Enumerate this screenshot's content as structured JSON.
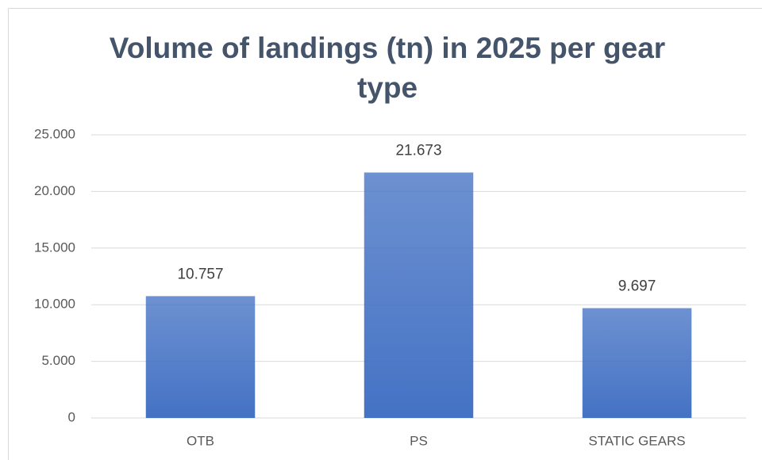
{
  "chart_data": {
    "type": "bar",
    "title": "Volume of landings (tn) in 2025 per gear type",
    "categories": [
      "OTB",
      "PS",
      "STATIC GEARS"
    ],
    "values": [
      10757,
      21673,
      9697
    ],
    "value_labels": [
      "10.757",
      "21.673",
      "9.697"
    ],
    "color": "#4472c4",
    "ylim": [
      0,
      25000
    ],
    "yticks": [
      0,
      {
        "value": 5000,
        "label": "5.000"
      },
      {
        "value": 10000,
        "label": "10.000"
      },
      {
        "value": 15000,
        "label": "15.000"
      },
      {
        "value": 20000,
        "label": "20.000"
      },
      {
        "value": 25000,
        "label": "25.000"
      }
    ],
    "grid": true
  }
}
